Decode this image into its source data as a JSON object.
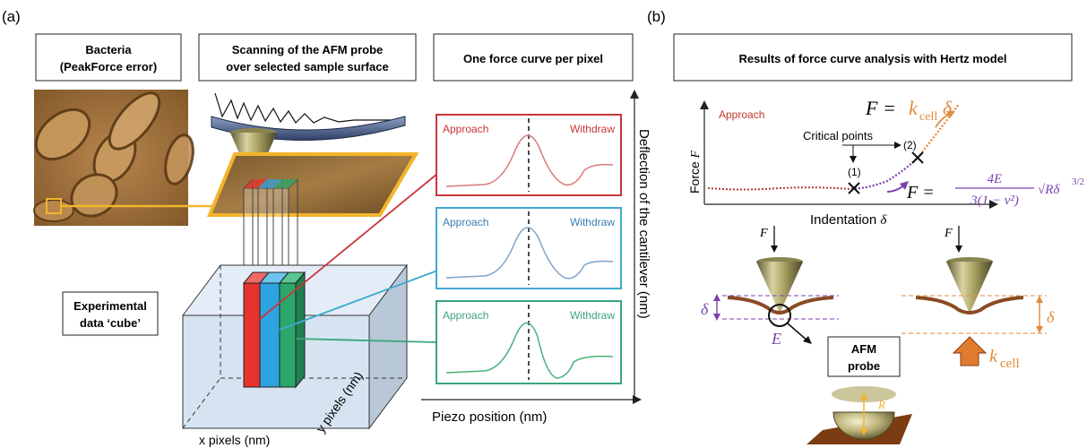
{
  "panel_a": {
    "label": "(a)",
    "header_bacteria_line1": "Bacteria",
    "header_bacteria_line2": "(PeakForce error)",
    "header_scan_line1": "Scanning of the AFM probe",
    "header_scan_line2": "over selected sample surface",
    "header_curve": "One force curve per pixel",
    "cube_label_line1": "Experimental",
    "cube_label_line2": "data ‘cube’",
    "x_pixels_label": "x pixels (nm)",
    "y_pixels_label": "y pixels (nm)",
    "deflection_axis_label": "Deflection of the cantilever (nm)",
    "piezo_axis_label": "Piezo position (nm)",
    "curves": [
      {
        "approach": "Approach",
        "withdraw": "Withdraw",
        "color": "#c8363b",
        "line": "#d9797b"
      },
      {
        "approach": "Approach",
        "withdraw": "Withdraw",
        "color": "#3fa9d0",
        "line": "#7fa4c8"
      },
      {
        "approach": "Approach",
        "withdraw": "Withdraw",
        "color": "#3aa57a",
        "line": "#47b07a"
      }
    ],
    "colors": {
      "highlight": "#f2b52a",
      "column_red": "#e8322d",
      "column_blue": "#2da3e0",
      "column_green": "#2aa86a"
    }
  },
  "panel_b": {
    "label": "(b)",
    "header": "Results of force curve analysis with Hertz model",
    "approach_label": "Approach",
    "critical_points_label": "Critical points",
    "point1_label": "(1)",
    "point2_label": "(2)",
    "force_axis_label": "Force",
    "force_axis_symbol": "F",
    "indentation_axis_label": "Indentation",
    "indentation_axis_symbol": "δ",
    "eq_top_lhs": "F =",
    "eq_top_k": "k",
    "eq_top_sub": "cell",
    "eq_top_delta": "δ",
    "eq_hertz_lhs": "F =",
    "eq_hertz_num": "4E",
    "eq_hertz_den": "3(1 − ν²)",
    "eq_hertz_tail": "√Rδ",
    "eq_hertz_exp": "3/2",
    "f_left": "F",
    "f_right": "F",
    "delta_left": "δ",
    "delta_right": "δ",
    "e_label": "E",
    "kcell_k": "k",
    "kcell_sub": "cell",
    "probe_label_line1": "AFM",
    "probe_label_line2": "probe",
    "r_label": "R",
    "colors": {
      "purple": "#7a3fb0",
      "orange": "#e08a3c",
      "approach": "#c0392b"
    }
  }
}
